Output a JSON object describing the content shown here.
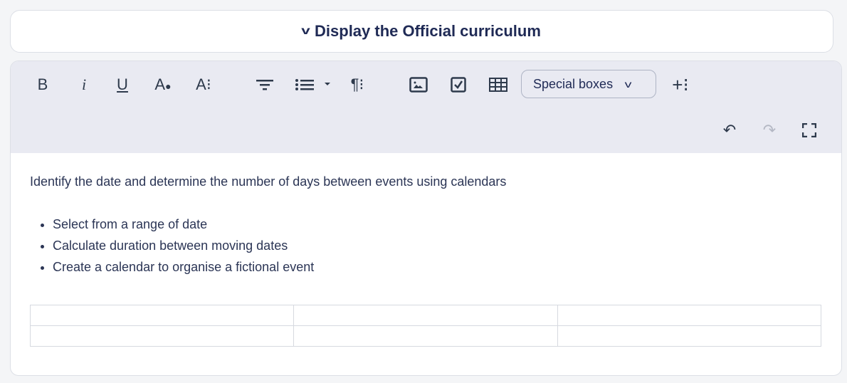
{
  "header": {
    "title": "Display the Official curriculum",
    "icon": "chevron-down-icon"
  },
  "toolbar": {
    "special_boxes": "Special boxes",
    "icons": [
      "bold",
      "italic",
      "underline",
      "text-color",
      "font-size",
      "align",
      "bullet-list",
      "paragraph",
      "image",
      "checkbox",
      "table",
      "insert-more",
      "undo",
      "redo",
      "fullscreen"
    ]
  },
  "content": {
    "paragraph": "Identify the date and determine the number of days between events using calendars",
    "bullets": [
      "Select from a range of date",
      "Calculate duration between moving dates",
      "Create a calendar to organise a fictional event"
    ],
    "table": {
      "rows": 2,
      "cols": 3
    }
  }
}
